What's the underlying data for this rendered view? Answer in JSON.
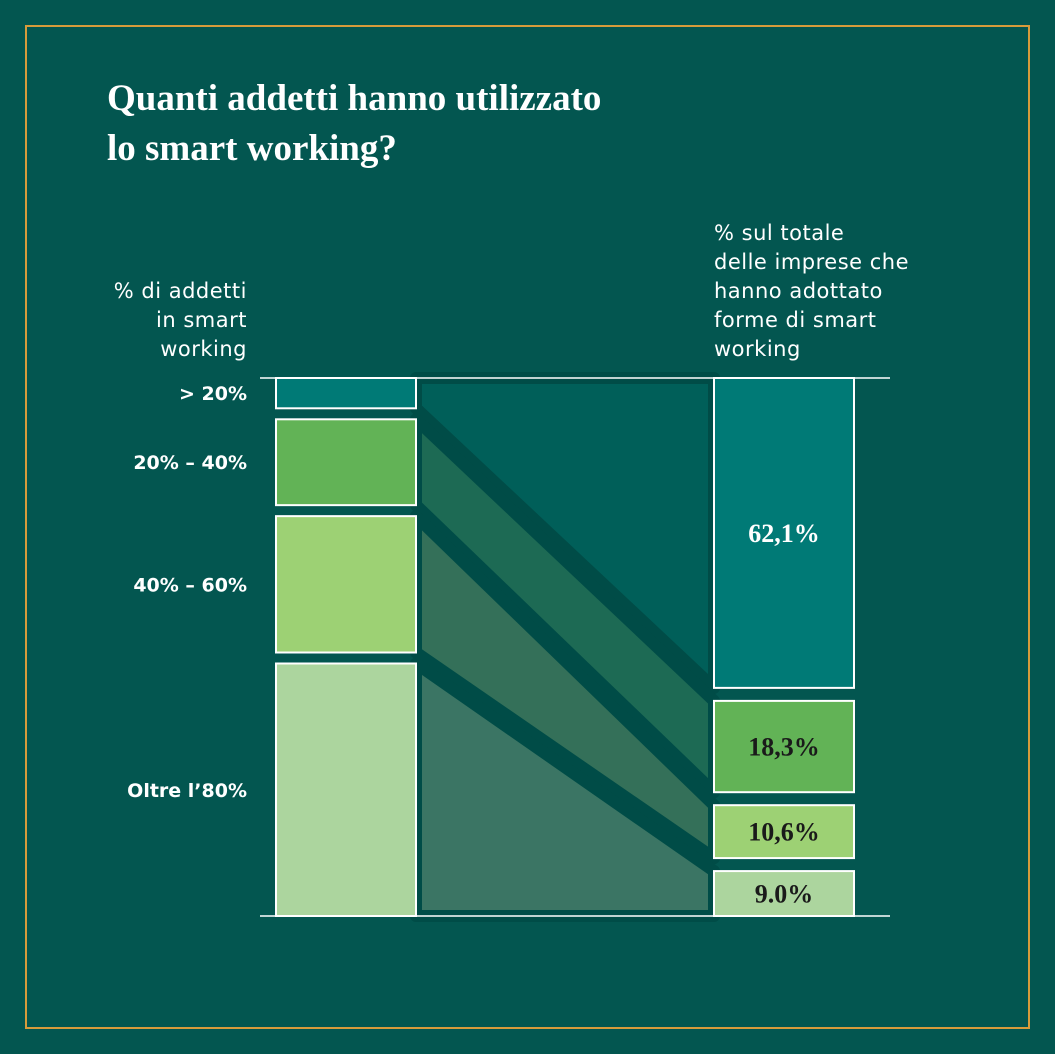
{
  "chart_data": {
    "type": "flow",
    "title": [
      "Quanti addetti hanno utilizzato",
      "lo smart working?"
    ],
    "left": {
      "label": [
        "% di addetti",
        "in smart",
        "working"
      ],
      "categories": [
        "> 20%",
        "20% – 40%",
        "40% – 60%",
        "Oltre l’80%"
      ],
      "values": [
        6,
        17,
        27,
        50
      ]
    },
    "right": {
      "label": [
        "% sul totale",
        "delle imprese che",
        "hanno adottato",
        "forme di smart",
        "working"
      ],
      "values": [
        62.1,
        18.3,
        10.6,
        9.0
      ],
      "value_labels": [
        "62,1%",
        "18,3%",
        "10,6%",
        "9.0%"
      ]
    },
    "colors": [
      "#007a76",
      "#62b356",
      "#9dd174",
      "#acd59e"
    ],
    "ribbon_colors": [
      "#005f59",
      "#1d6a54",
      "#347059",
      "#3b7564"
    ]
  }
}
